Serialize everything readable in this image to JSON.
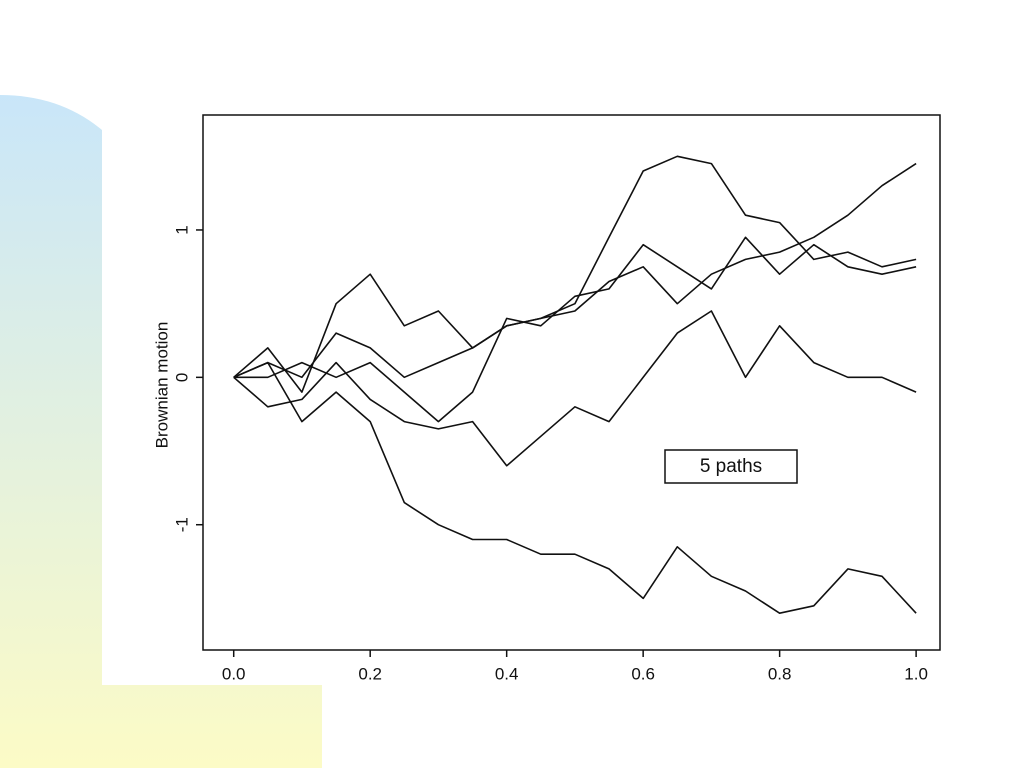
{
  "chart_data": {
    "type": "line",
    "y_label": "Brownian motion",
    "annotation": "5 paths",
    "x": [
      0,
      0.05,
      0.1,
      0.15,
      0.2,
      0.25,
      0.3,
      0.35,
      0.4,
      0.45,
      0.5,
      0.55,
      0.6,
      0.65,
      0.7,
      0.75,
      0.8,
      0.85,
      0.9,
      0.95,
      1.0
    ],
    "series": [
      {
        "color": "#111111",
        "values": [
          0,
          0.1,
          0.0,
          0.3,
          0.2,
          0.0,
          0.1,
          0.2,
          0.35,
          0.4,
          0.5,
          0.95,
          1.4,
          1.5,
          1.45,
          1.1,
          1.05,
          0.8,
          0.85,
          0.75,
          0.8
        ]
      },
      {
        "color": "#111111",
        "values": [
          0,
          0.2,
          -0.1,
          0.5,
          0.7,
          0.35,
          0.45,
          0.2,
          0.35,
          0.4,
          0.45,
          0.65,
          0.75,
          0.5,
          0.7,
          0.8,
          0.85,
          0.95,
          1.1,
          1.3,
          1.45
        ]
      },
      {
        "color": "#111111",
        "values": [
          0,
          0.0,
          0.1,
          0.0,
          0.1,
          -0.1,
          -0.3,
          -0.1,
          0.4,
          0.35,
          0.55,
          0.6,
          0.9,
          0.75,
          0.6,
          0.95,
          0.7,
          0.9,
          0.75,
          0.7,
          0.75
        ]
      },
      {
        "color": "#111111",
        "values": [
          0,
          -0.2,
          -0.15,
          0.1,
          -0.15,
          -0.3,
          -0.35,
          -0.3,
          -0.6,
          -0.4,
          -0.2,
          -0.3,
          0.0,
          0.3,
          0.45,
          0.0,
          0.35,
          0.1,
          0.0,
          0.0,
          -0.1
        ]
      },
      {
        "color": "#111111",
        "values": [
          0,
          0.1,
          -0.3,
          -0.1,
          -0.3,
          -0.85,
          -1.0,
          -1.1,
          -1.1,
          -1.2,
          -1.2,
          -1.3,
          -1.5,
          -1.15,
          -1.35,
          -1.45,
          -1.6,
          -1.55,
          -1.3,
          -1.35,
          -1.6
        ]
      }
    ],
    "xlim": [
      -0.045,
      1.035
    ],
    "ylim": [
      -1.85,
      1.78
    ],
    "xticks": [
      {
        "value": 0,
        "label": "0.0"
      },
      {
        "value": 0.2,
        "label": "0.2"
      },
      {
        "value": 0.4,
        "label": "0.4"
      },
      {
        "value": 0.6,
        "label": "0.6"
      },
      {
        "value": 0.8,
        "label": "0.8"
      },
      {
        "value": 1,
        "label": "1.0"
      }
    ],
    "yticks": [
      -1,
      0,
      1
    ],
    "grid": false
  }
}
